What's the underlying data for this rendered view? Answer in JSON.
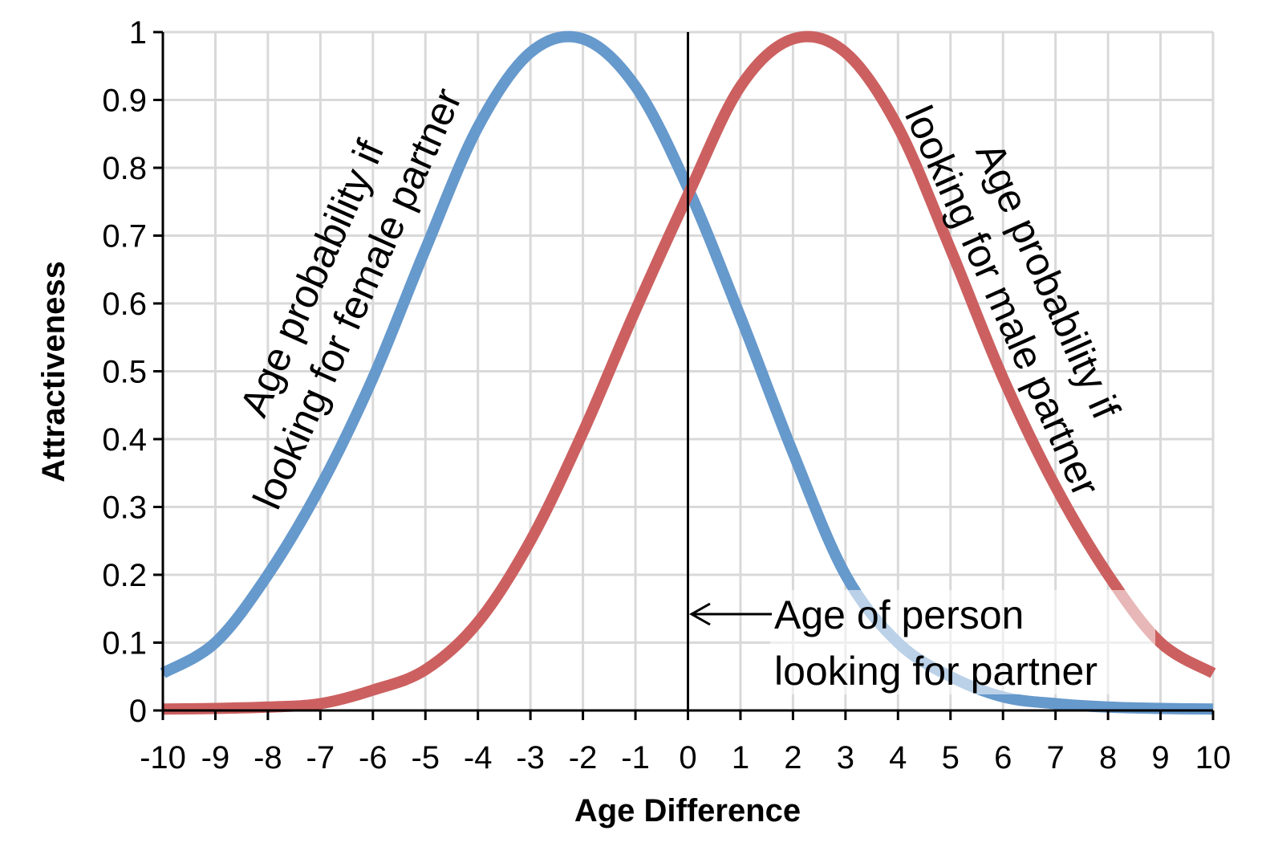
{
  "chart_data": {
    "type": "line",
    "xlabel": "Age Difference",
    "ylabel": "Attractiveness",
    "xlim": [
      -10,
      10
    ],
    "ylim": [
      0,
      1
    ],
    "x_ticks": [
      "-10",
      "-9",
      "-8",
      "-7",
      "-6",
      "-5",
      "-4",
      "-3",
      "-2",
      "-1",
      "0",
      "1",
      "2",
      "3",
      "4",
      "5",
      "6",
      "7",
      "8",
      "9",
      "10"
    ],
    "y_ticks": [
      "0",
      "0.1",
      "0.2",
      "0.3",
      "0.4",
      "0.5",
      "0.6",
      "0.7",
      "0.8",
      "0.9",
      "1"
    ],
    "grid": true,
    "x": [
      -10,
      -9,
      -8,
      -7,
      -6,
      -5,
      -4,
      -3,
      -2,
      -1,
      0,
      1,
      2,
      3,
      4,
      5,
      6,
      7,
      8,
      9,
      10
    ],
    "series": [
      {
        "color": "#6699cc",
        "values": [
          0.055,
          0.1,
          0.2,
          0.33,
          0.49,
          0.68,
          0.86,
          0.97,
          0.99,
          0.92,
          0.77,
          0.58,
          0.38,
          0.2,
          0.1,
          0.05,
          0.02,
          0.01,
          0.005,
          0.003,
          0.002
        ]
      },
      {
        "color": "#cc6060",
        "values": [
          0.002,
          0.003,
          0.005,
          0.01,
          0.03,
          0.06,
          0.13,
          0.25,
          0.41,
          0.59,
          0.76,
          0.92,
          0.99,
          0.97,
          0.86,
          0.68,
          0.49,
          0.33,
          0.2,
          0.1,
          0.055
        ]
      }
    ],
    "annotations": {
      "blue_curve": [
        "Age probability if",
        "looking for female partner"
      ],
      "red_curve": [
        "Age probability if",
        "looking for male partner"
      ],
      "origin_line": [
        "Age of person",
        "looking for partner"
      ]
    }
  }
}
